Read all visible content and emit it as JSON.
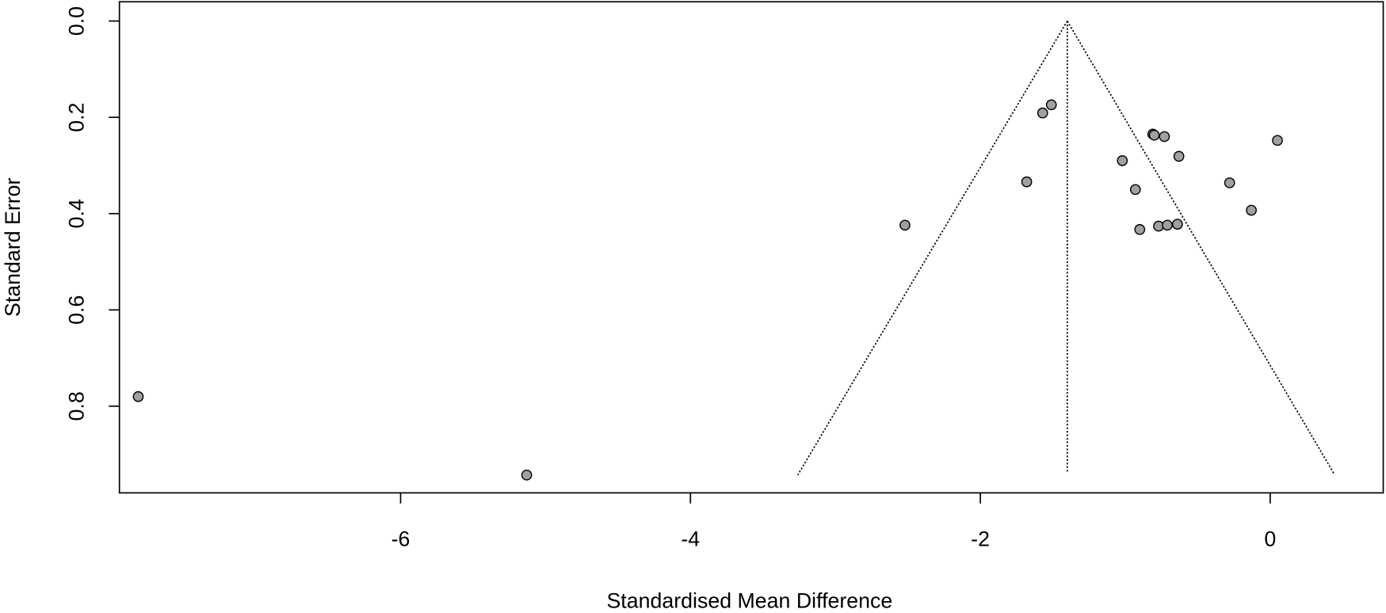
{
  "chart_data": {
    "type": "scatter",
    "x_label": "Standardised Mean Difference",
    "y_label": "Standard Error",
    "xlim": [
      -7.94,
      0.78
    ],
    "ylim": [
      0.98,
      -0.04
    ],
    "xticks": [
      -6,
      -4,
      -2,
      0
    ],
    "yticks": [
      {
        "value": 0,
        "label": "0.0"
      },
      0.2,
      0.4,
      0.6,
      0.8
    ],
    "color": "#a0a0a0",
    "x": [
      -7.81,
      -5.13,
      -2.52,
      -1.68,
      -1.57,
      -1.51,
      -1.02,
      -0.93,
      -0.9,
      -0.81,
      -0.8,
      -0.77,
      -0.73,
      -0.71,
      -0.64,
      -0.63,
      -0.28,
      -0.13,
      0.05
    ],
    "values": [
      0.78,
      0.943,
      0.424,
      0.334,
      0.191,
      0.174,
      0.29,
      0.35,
      0.433,
      0.235,
      0.237,
      0.426,
      0.24,
      0.424,
      0.422,
      0.281,
      0.336,
      0.393,
      0.248
    ],
    "lines": [
      {
        "x": [
          -1.4,
          -3.26
        ],
        "values": [
          0,
          0.943
        ]
      },
      {
        "x": [
          -1.4,
          0.44
        ],
        "values": [
          0,
          0.94
        ]
      },
      {
        "x": [
          -1.4,
          -1.4
        ],
        "values": [
          0,
          0.936
        ]
      }
    ]
  }
}
